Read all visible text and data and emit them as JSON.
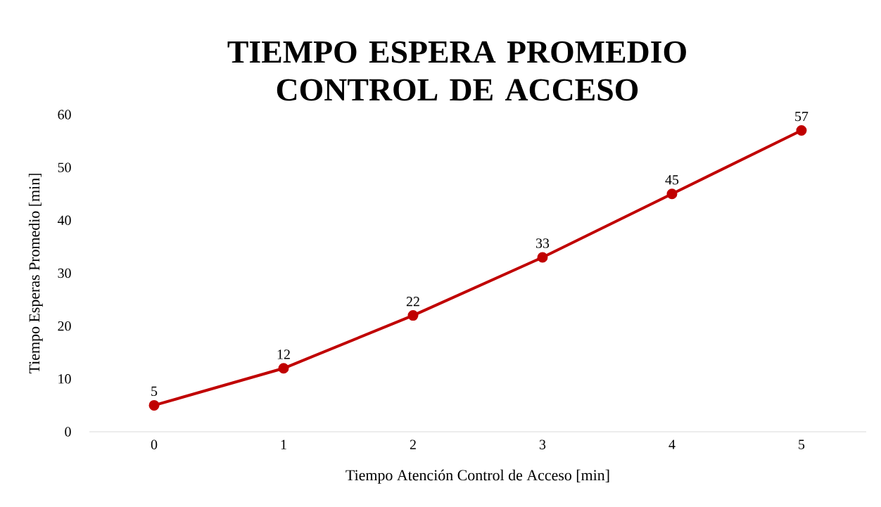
{
  "chart_data": {
    "type": "line",
    "title": "TIEMPO ESPERA PROMEDIO CONTROL DE ACCESO",
    "xlabel": "Tiempo Atención Control de Acceso [min]",
    "ylabel": "Tiempo Esperas Promedio [min]",
    "categories": [
      "0",
      "1",
      "2",
      "3",
      "4",
      "5"
    ],
    "series": [
      {
        "color": "#c00000",
        "values": [
          5,
          12,
          22,
          33,
          45,
          57
        ]
      }
    ],
    "ylim": [
      0,
      60
    ],
    "yticks": [
      0,
      10,
      20,
      30,
      40,
      50,
      60
    ],
    "grid": false,
    "marker": "circle",
    "line_style": "solid",
    "data_labels": true
  }
}
